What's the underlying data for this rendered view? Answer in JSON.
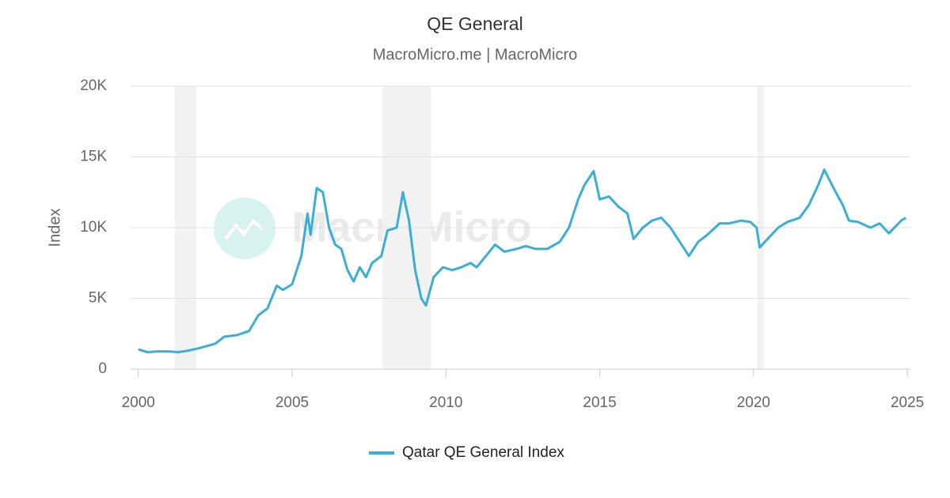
{
  "chart_data": {
    "type": "line",
    "title": "QE General",
    "subtitle": "MacroMicro.me | MacroMicro",
    "watermark": "MacroMicro",
    "y_label": "Index",
    "x": [
      2000.0,
      2000.3,
      2000.6,
      2001.0,
      2001.3,
      2001.6,
      2002.0,
      2002.5,
      2002.8,
      2003.2,
      2003.6,
      2003.9,
      2004.2,
      2004.5,
      2004.7,
      2005.0,
      2005.3,
      2005.5,
      2005.6,
      2005.8,
      2006.0,
      2006.2,
      2006.4,
      2006.6,
      2006.8,
      2007.0,
      2007.2,
      2007.4,
      2007.6,
      2007.9,
      2008.1,
      2008.4,
      2008.6,
      2008.8,
      2009.0,
      2009.2,
      2009.35,
      2009.6,
      2009.9,
      2010.2,
      2010.5,
      2010.8,
      2011.0,
      2011.3,
      2011.6,
      2011.9,
      2012.3,
      2012.6,
      2012.9,
      2013.3,
      2013.7,
      2014.0,
      2014.3,
      2014.5,
      2014.8,
      2015.0,
      2015.3,
      2015.6,
      2015.9,
      2016.1,
      2016.4,
      2016.7,
      2017.0,
      2017.3,
      2017.6,
      2017.9,
      2018.2,
      2018.5,
      2018.9,
      2019.2,
      2019.6,
      2019.9,
      2020.1,
      2020.2,
      2020.5,
      2020.8,
      2021.1,
      2021.5,
      2021.8,
      2022.1,
      2022.3,
      2022.6,
      2022.9,
      2023.1,
      2023.4,
      2023.8,
      2024.1,
      2024.4,
      2024.8,
      2024.95
    ],
    "series": [
      {
        "name": "Qatar QE General Index",
        "color": "#3aaed8",
        "values": [
          1400,
          1200,
          1250,
          1250,
          1200,
          1300,
          1500,
          1800,
          2300,
          2400,
          2700,
          3800,
          4300,
          5900,
          5600,
          6000,
          8000,
          11000,
          9500,
          12800,
          12500,
          10000,
          8800,
          8500,
          7000,
          6200,
          7200,
          6500,
          7500,
          8000,
          9800,
          10000,
          12500,
          10500,
          7000,
          5000,
          4500,
          6500,
          7200,
          7000,
          7200,
          7500,
          7200,
          8000,
          8800,
          8300,
          8500,
          8700,
          8500,
          8500,
          9000,
          10000,
          12000,
          13000,
          14000,
          12000,
          12200,
          11500,
          11000,
          9200,
          10000,
          10500,
          10700,
          10000,
          9000,
          8000,
          9000,
          9500,
          10300,
          10300,
          10500,
          10400,
          10000,
          8600,
          9300,
          10000,
          10400,
          10700,
          11600,
          13000,
          14100,
          12800,
          11600,
          10500,
          10400,
          10000,
          10300,
          9600,
          10500,
          10700
        ]
      }
    ],
    "shaded_ranges": [
      [
        2001.18,
        2001.88
      ],
      [
        2007.93,
        2009.52
      ],
      [
        2020.12,
        2020.35
      ]
    ],
    "xlim": [
      1999.75,
      2025.1
    ],
    "xticks": [
      2000,
      2005,
      2010,
      2015,
      2020,
      2025
    ],
    "ylim": [
      0,
      20000
    ],
    "yticks": [
      0,
      {
        "value": 5000,
        "label": "5K"
      },
      {
        "value": 10000,
        "label": "10K"
      },
      {
        "value": 15000,
        "label": "15K"
      },
      {
        "value": 20000,
        "label": "20K"
      }
    ],
    "grid": true,
    "legend": "bottom"
  }
}
